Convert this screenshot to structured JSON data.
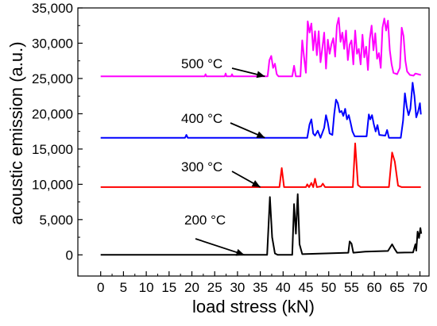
{
  "chart_data": {
    "type": "line",
    "xlabel": "load stress (kN)",
    "ylabel": "acoustic emission (a.u.)",
    "xlim": [
      -5,
      72
    ],
    "ylim": [
      -3000,
      35000
    ],
    "xticks": [
      0,
      5,
      10,
      15,
      20,
      25,
      30,
      35,
      40,
      45,
      50,
      55,
      60,
      65,
      70
    ],
    "xtick_labels": [
      "0",
      "5",
      "10",
      "15",
      "20",
      "25",
      "30",
      "35",
      "40",
      "45",
      "50",
      "55",
      "60",
      "65",
      "70"
    ],
    "yticks": [
      0,
      5000,
      10000,
      15000,
      20000,
      25000,
      30000,
      35000
    ],
    "ytick_labels": [
      "0",
      "5,000",
      "10,000",
      "15,000",
      "20,000",
      "25,000",
      "30,000",
      "35,000"
    ],
    "grid": false,
    "legend": "none",
    "series": [
      {
        "name": "200 °C",
        "color": "#000000",
        "points": [
          [
            0,
            0
          ],
          [
            36.5,
            0
          ],
          [
            37.1,
            8200
          ],
          [
            37.6,
            2500
          ],
          [
            38.2,
            200
          ],
          [
            38.8,
            0
          ],
          [
            42.0,
            0
          ],
          [
            42.4,
            7200
          ],
          [
            42.8,
            3000
          ],
          [
            43.2,
            8600
          ],
          [
            43.6,
            1500
          ],
          [
            44.2,
            100
          ],
          [
            54.3,
            300
          ],
          [
            54.6,
            1900
          ],
          [
            55.0,
            1600
          ],
          [
            55.4,
            300
          ],
          [
            58.0,
            450
          ],
          [
            63.0,
            550
          ],
          [
            63.9,
            1500
          ],
          [
            64.4,
            900
          ],
          [
            65.0,
            300
          ],
          [
            68.5,
            350
          ],
          [
            69.0,
            1500
          ],
          [
            69.2,
            600
          ],
          [
            69.5,
            3300
          ],
          [
            69.8,
            2400
          ],
          [
            70.1,
            3800
          ],
          [
            70.3,
            3000
          ]
        ]
      },
      {
        "name": "300 °C",
        "color": "#ff0000",
        "points": [
          [
            0,
            9600
          ],
          [
            39.2,
            9600
          ],
          [
            39.7,
            12300
          ],
          [
            40.2,
            9600
          ],
          [
            45.0,
            9600
          ],
          [
            45.3,
            10000
          ],
          [
            45.7,
            9600
          ],
          [
            46.2,
            10200
          ],
          [
            46.6,
            9600
          ],
          [
            47.0,
            10800
          ],
          [
            47.4,
            9600
          ],
          [
            48.3,
            9700
          ],
          [
            48.7,
            10100
          ],
          [
            49.2,
            9600
          ],
          [
            55.3,
            9600
          ],
          [
            55.8,
            15800
          ],
          [
            56.4,
            9900
          ],
          [
            57.0,
            9600
          ],
          [
            63.2,
            9600
          ],
          [
            63.9,
            14500
          ],
          [
            64.5,
            13200
          ],
          [
            65.2,
            9800
          ],
          [
            66.0,
            9600
          ],
          [
            70.2,
            9600
          ]
        ]
      },
      {
        "name": "400 °C",
        "color": "#0000ff",
        "points": [
          [
            0,
            16600
          ],
          [
            18.5,
            16600
          ],
          [
            18.8,
            17000
          ],
          [
            19.1,
            16600
          ],
          [
            45.3,
            16600
          ],
          [
            45.8,
            18500
          ],
          [
            46.2,
            19200
          ],
          [
            46.6,
            17200
          ],
          [
            47.0,
            16900
          ],
          [
            47.6,
            17600
          ],
          [
            48.2,
            16600
          ],
          [
            49.0,
            18000
          ],
          [
            49.4,
            19800
          ],
          [
            49.8,
            18700
          ],
          [
            50.2,
            17200
          ],
          [
            50.8,
            17000
          ],
          [
            51.2,
            19900
          ],
          [
            51.6,
            22000
          ],
          [
            52.0,
            21500
          ],
          [
            52.4,
            20200
          ],
          [
            52.8,
            20400
          ],
          [
            53.2,
            19700
          ],
          [
            53.6,
            20700
          ],
          [
            54.0,
            19200
          ],
          [
            54.4,
            19800
          ],
          [
            54.8,
            18700
          ],
          [
            55.2,
            17500
          ],
          [
            55.7,
            16800
          ],
          [
            58.3,
            16800
          ],
          [
            58.8,
            19900
          ],
          [
            59.1,
            19200
          ],
          [
            59.5,
            19800
          ],
          [
            59.9,
            18500
          ],
          [
            60.3,
            17500
          ],
          [
            60.7,
            18400
          ],
          [
            61.1,
            17000
          ],
          [
            62.4,
            16900
          ],
          [
            62.8,
            17700
          ],
          [
            63.2,
            16600
          ],
          [
            65.8,
            16600
          ],
          [
            66.3,
            19000
          ],
          [
            66.7,
            22900
          ],
          [
            67.1,
            21000
          ],
          [
            67.5,
            19800
          ],
          [
            67.9,
            20700
          ],
          [
            68.4,
            24400
          ],
          [
            68.8,
            22500
          ],
          [
            69.2,
            19500
          ],
          [
            69.6,
            20300
          ],
          [
            70.0,
            21500
          ],
          [
            70.2,
            19900
          ]
        ]
      },
      {
        "name": "500 °C",
        "color": "#ff00ff",
        "points": [
          [
            0,
            25300
          ],
          [
            22.8,
            25300
          ],
          [
            23.0,
            25600
          ],
          [
            23.2,
            25300
          ],
          [
            27.2,
            25300
          ],
          [
            27.4,
            25700
          ],
          [
            27.6,
            25300
          ],
          [
            28.6,
            25300
          ],
          [
            28.8,
            25600
          ],
          [
            29.0,
            25300
          ],
          [
            36.6,
            25300
          ],
          [
            37.0,
            27600
          ],
          [
            37.4,
            28200
          ],
          [
            37.8,
            26500
          ],
          [
            38.2,
            27100
          ],
          [
            38.6,
            25600
          ],
          [
            39.0,
            25300
          ],
          [
            42.0,
            25300
          ],
          [
            42.4,
            26800
          ],
          [
            42.8,
            25300
          ],
          [
            43.8,
            25300
          ],
          [
            44.2,
            30400
          ],
          [
            44.6,
            28000
          ],
          [
            45.0,
            25800
          ],
          [
            45.4,
            33100
          ],
          [
            45.8,
            31500
          ],
          [
            46.2,
            32800
          ],
          [
            46.6,
            29000
          ],
          [
            47.0,
            31700
          ],
          [
            47.4,
            28300
          ],
          [
            47.8,
            31700
          ],
          [
            48.2,
            27300
          ],
          [
            48.6,
            29300
          ],
          [
            49.0,
            31500
          ],
          [
            49.4,
            26400
          ],
          [
            49.8,
            30500
          ],
          [
            50.2,
            28500
          ],
          [
            50.6,
            29900
          ],
          [
            51.0,
            30700
          ],
          [
            51.4,
            28100
          ],
          [
            51.8,
            32500
          ],
          [
            52.2,
            33600
          ],
          [
            52.6,
            30200
          ],
          [
            53.0,
            31500
          ],
          [
            53.4,
            29200
          ],
          [
            53.8,
            31800
          ],
          [
            54.2,
            27600
          ],
          [
            54.6,
            29800
          ],
          [
            55.0,
            30400
          ],
          [
            55.4,
            27000
          ],
          [
            55.8,
            31800
          ],
          [
            56.2,
            28500
          ],
          [
            56.6,
            29200
          ],
          [
            57.0,
            27000
          ],
          [
            57.4,
            31200
          ],
          [
            57.8,
            28000
          ],
          [
            58.2,
            29500
          ],
          [
            58.6,
            26200
          ],
          [
            59.0,
            30600
          ],
          [
            59.4,
            32500
          ],
          [
            59.8,
            29000
          ],
          [
            60.2,
            31400
          ],
          [
            60.6,
            27800
          ],
          [
            61.0,
            28600
          ],
          [
            61.4,
            26500
          ],
          [
            61.8,
            32200
          ],
          [
            62.2,
            33500
          ],
          [
            62.6,
            31800
          ],
          [
            63.0,
            33200
          ],
          [
            63.4,
            29000
          ],
          [
            63.8,
            27000
          ],
          [
            64.2,
            25800
          ],
          [
            65.0,
            25600
          ],
          [
            65.6,
            26500
          ],
          [
            66.0,
            32200
          ],
          [
            66.4,
            31000
          ],
          [
            66.8,
            27500
          ],
          [
            67.2,
            26000
          ],
          [
            67.8,
            25500
          ],
          [
            68.6,
            25400
          ],
          [
            69.0,
            25700
          ],
          [
            70.2,
            25500
          ]
        ]
      }
    ],
    "annotations": [
      {
        "text": "500 °C",
        "color": "#000000",
        "arrow_to": [
          36.0,
          25300
        ]
      },
      {
        "text": "400 °C",
        "color": "#000000",
        "arrow_to": [
          36.0,
          16600
        ]
      },
      {
        "text": "300 °C",
        "color": "#000000",
        "arrow_to": [
          35.0,
          9600
        ]
      },
      {
        "text": "200 °C",
        "color": "#000000",
        "arrow_to": [
          31.5,
          0
        ]
      }
    ]
  }
}
